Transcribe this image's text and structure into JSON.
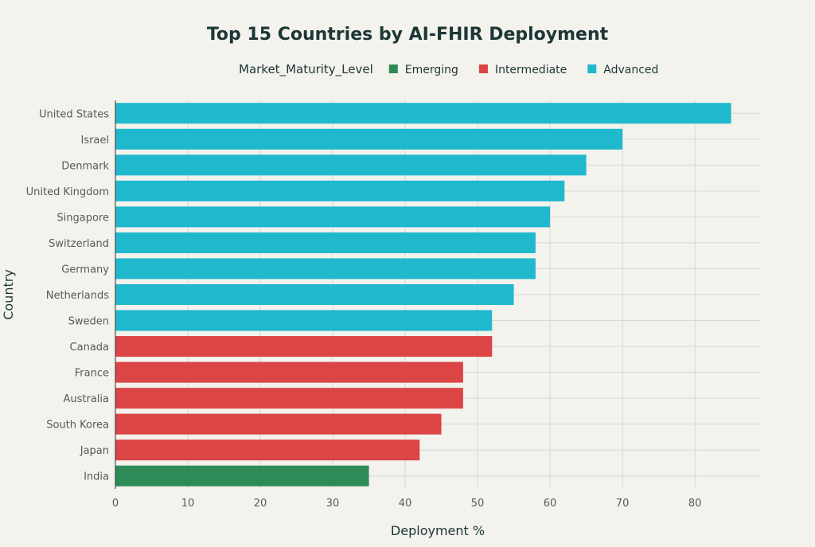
{
  "chart_data": {
    "type": "bar",
    "orientation": "horizontal",
    "title": "Top 15 Countries by AI-FHIR Deployment",
    "xlabel": "Deployment %",
    "ylabel": "Country",
    "xlim": [
      0,
      89
    ],
    "xticks": [
      0,
      10,
      20,
      30,
      40,
      50,
      60,
      70,
      80
    ],
    "grid": true,
    "legend": {
      "title": "Market_Maturity_Level",
      "placement": "top",
      "entries": [
        {
          "name": "Emerging",
          "color": "#2e8b57"
        },
        {
          "name": "Intermediate",
          "color": "#db4545"
        },
        {
          "name": "Advanced",
          "color": "#1fb8cd"
        }
      ]
    },
    "categories": [
      "United States",
      "Israel",
      "Denmark",
      "United Kingdom",
      "Singapore",
      "Switzerland",
      "Germany",
      "Netherlands",
      "Sweden",
      "Canada",
      "France",
      "Australia",
      "South Korea",
      "Japan",
      "India"
    ],
    "values": [
      85,
      70,
      65,
      62,
      60,
      58,
      58,
      55,
      52,
      52,
      48,
      48,
      45,
      42,
      35
    ],
    "groups": [
      "Advanced",
      "Advanced",
      "Advanced",
      "Advanced",
      "Advanced",
      "Advanced",
      "Advanced",
      "Advanced",
      "Advanced",
      "Intermediate",
      "Intermediate",
      "Intermediate",
      "Intermediate",
      "Intermediate",
      "Emerging"
    ]
  }
}
